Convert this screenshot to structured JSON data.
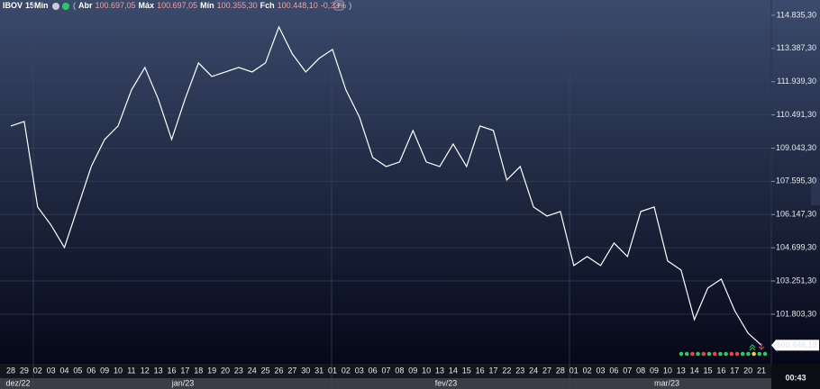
{
  "chart_data": {
    "type": "line",
    "title": "IBOV",
    "interval": "15Min",
    "header_open": "(",
    "header_close": ")",
    "stats": [
      {
        "label": "Abr",
        "value": "100.697,05"
      },
      {
        "label": "Máx",
        "value": "100.697,05"
      },
      {
        "label": "Mín",
        "value": "100.355,30"
      },
      {
        "label": "Fch",
        "value": "100.448,10"
      }
    ],
    "change": "-0,23%",
    "categories": [
      "28",
      "29",
      "02",
      "03",
      "04",
      "05",
      "06",
      "09",
      "10",
      "11",
      "12",
      "13",
      "16",
      "17",
      "18",
      "19",
      "20",
      "23",
      "24",
      "25",
      "26",
      "27",
      "30",
      "31",
      "01",
      "02",
      "03",
      "06",
      "07",
      "08",
      "09",
      "10",
      "13",
      "14",
      "15",
      "16",
      "17",
      "22",
      "23",
      "24",
      "27",
      "28",
      "01",
      "02",
      "03",
      "06",
      "07",
      "08",
      "09",
      "10",
      "13",
      "14",
      "15",
      "16",
      "17",
      "20",
      "21"
    ],
    "x_groups": [
      "dez/22",
      "jan/23",
      "fev/23",
      "mar/23"
    ],
    "series": [
      {
        "name": "IBOV",
        "color": "#ffffff",
        "values": [
          110008,
          110205,
          106476,
          105690,
          104710,
          106476,
          108242,
          109420,
          110008,
          111578,
          112559,
          111185,
          109420,
          111185,
          112755,
          112166,
          112363,
          112559,
          112363,
          112755,
          114325,
          113147,
          112363,
          112951,
          113343,
          111578,
          110400,
          108634,
          108242,
          108438,
          109812,
          108438,
          108242,
          109223,
          108242,
          110008,
          109812,
          107653,
          108242,
          106476,
          106084,
          106280,
          103925,
          104318,
          103925,
          104906,
          104318,
          106280,
          106476,
          104122,
          103729,
          101570,
          102944,
          103336,
          101962,
          100981,
          100448.1
        ]
      }
    ],
    "ylim": [
      99680,
      115500
    ],
    "yticks": [
      {
        "value": 114835.3,
        "label": "114.835,30"
      },
      {
        "value": 113387.3,
        "label": "113.387,30"
      },
      {
        "value": 111939.3,
        "label": "111.939,30"
      },
      {
        "value": 110491.3,
        "label": "110.491,30"
      },
      {
        "value": 109043.3,
        "label": "109.043,30"
      },
      {
        "value": 107595.3,
        "label": "107.595,30"
      },
      {
        "value": 106147.3,
        "label": "106.147,30"
      },
      {
        "value": 104699.3,
        "label": "104.699,30"
      },
      {
        "value": 103251.3,
        "label": "103.251,30"
      },
      {
        "value": 101803.3,
        "label": "101.803,30"
      }
    ],
    "current_price": {
      "value": 100448.1,
      "label": "100.448,10"
    },
    "clock": "00:43",
    "grid": true
  }
}
